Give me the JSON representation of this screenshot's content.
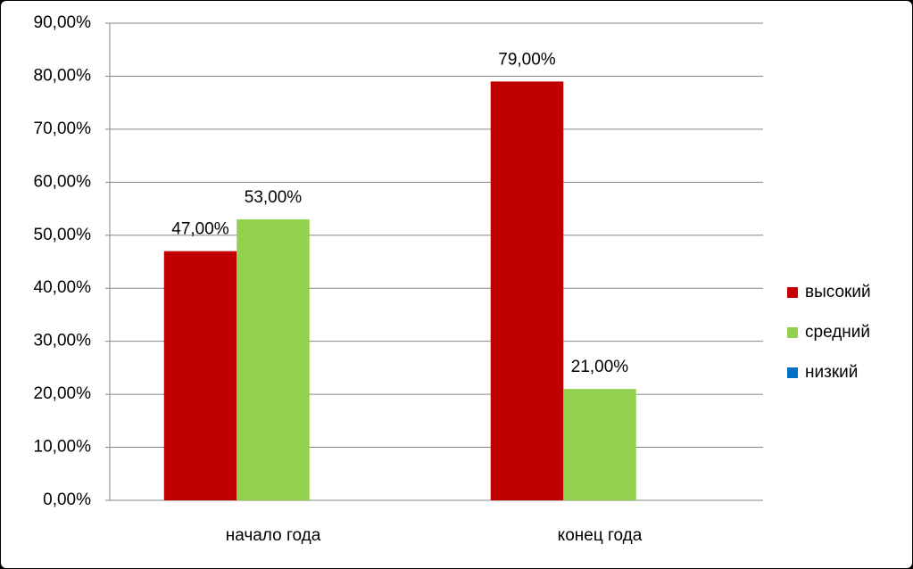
{
  "chart_data": {
    "type": "bar",
    "categories": [
      "начало года",
      "конец года"
    ],
    "series": [
      {
        "name": "высокий",
        "color": "#c00000",
        "values": [
          47,
          79
        ],
        "value_labels": [
          "47,00%",
          "79,00%"
        ]
      },
      {
        "name": "средний",
        "color": "#92d050",
        "values": [
          53,
          21
        ],
        "value_labels": [
          "53,00%",
          "21,00%"
        ]
      },
      {
        "name": "низкий",
        "color": "#0070c0",
        "values": [
          null,
          null
        ]
      }
    ],
    "ylim": [
      0,
      90
    ],
    "yticks": [
      {
        "value": 0,
        "label": "0,00%"
      },
      {
        "value": 10,
        "label": "10,00%"
      },
      {
        "value": 20,
        "label": "20,00%"
      },
      {
        "value": 30,
        "label": "30,00%"
      },
      {
        "value": 40,
        "label": "40,00%"
      },
      {
        "value": 50,
        "label": "50,00%"
      },
      {
        "value": 60,
        "label": "60,00%"
      },
      {
        "value": 70,
        "label": "70,00%"
      },
      {
        "value": 80,
        "label": "80,00%"
      },
      {
        "value": 90,
        "label": "90,00%"
      }
    ],
    "grid": true,
    "legend": "right"
  }
}
